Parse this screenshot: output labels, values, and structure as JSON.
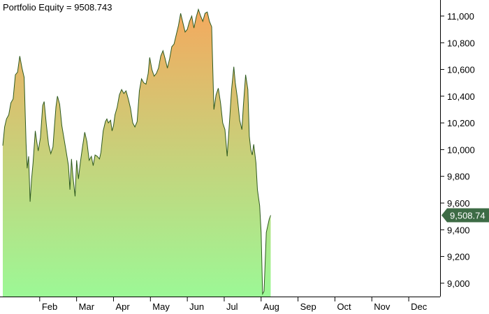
{
  "chart_data": {
    "type": "area",
    "title": "Portfolio Equity = 9508.743",
    "xlabel": "",
    "ylabel": "",
    "x_tick_labels": [
      "Feb",
      "Mar",
      "Apr",
      "May",
      "Jun",
      "Jul",
      "Aug",
      "Sep",
      "Oct",
      "Nov",
      "Dec"
    ],
    "x_tick_months": [
      2,
      3,
      4,
      5,
      6,
      7,
      8,
      9,
      10,
      11,
      12
    ],
    "x_range_months": [
      1.0,
      12.85
    ],
    "ylim": [
      8900,
      11120
    ],
    "y_ticks": [
      9000,
      9200,
      9400,
      9600,
      9800,
      10000,
      10200,
      10400,
      10600,
      10800,
      11000
    ],
    "y_tick_labels": [
      "9,000",
      "9,200",
      "9,400",
      "9,600",
      "9,800",
      "10,000",
      "10,200",
      "10,400",
      "10,600",
      "10,800",
      "11,000"
    ],
    "last_value": 9508.743,
    "last_value_label": "9,508.74",
    "grid": false,
    "legend": "none",
    "colors": {
      "fill_top": "#f4a95e",
      "fill_bottom": "#9cf896",
      "line": "#2e5a1f",
      "badge": "#3d6b45",
      "axis": "#000000"
    },
    "series": [
      {
        "points": [
          [
            1.0,
            10030
          ],
          [
            1.05,
            10170
          ],
          [
            1.1,
            10230
          ],
          [
            1.16,
            10260
          ],
          [
            1.22,
            10350
          ],
          [
            1.28,
            10380
          ],
          [
            1.34,
            10560
          ],
          [
            1.4,
            10580
          ],
          [
            1.46,
            10700
          ],
          [
            1.52,
            10610
          ],
          [
            1.58,
            10540
          ],
          [
            1.63,
            10050
          ],
          [
            1.66,
            9860
          ],
          [
            1.7,
            9950
          ],
          [
            1.74,
            9610
          ],
          [
            1.78,
            9780
          ],
          [
            1.82,
            9900
          ],
          [
            1.88,
            10140
          ],
          [
            1.92,
            10060
          ],
          [
            1.96,
            9990
          ],
          [
            2.02,
            10090
          ],
          [
            2.08,
            10330
          ],
          [
            2.12,
            10360
          ],
          [
            2.18,
            10190
          ],
          [
            2.24,
            10040
          ],
          [
            2.3,
            9970
          ],
          [
            2.36,
            10020
          ],
          [
            2.4,
            10180
          ],
          [
            2.44,
            10320
          ],
          [
            2.48,
            10400
          ],
          [
            2.54,
            10340
          ],
          [
            2.6,
            10180
          ],
          [
            2.66,
            10080
          ],
          [
            2.72,
            9980
          ],
          [
            2.78,
            9880
          ],
          [
            2.82,
            9700
          ],
          [
            2.86,
            9930
          ],
          [
            2.9,
            9800
          ],
          [
            2.96,
            9650
          ],
          [
            3.0,
            9920
          ],
          [
            3.05,
            9780
          ],
          [
            3.1,
            9900
          ],
          [
            3.16,
            10020
          ],
          [
            3.22,
            10130
          ],
          [
            3.28,
            10060
          ],
          [
            3.34,
            9920
          ],
          [
            3.4,
            9950
          ],
          [
            3.45,
            9880
          ],
          [
            3.5,
            9960
          ],
          [
            3.56,
            9950
          ],
          [
            3.62,
            9930
          ],
          [
            3.66,
            9980
          ],
          [
            3.72,
            10140
          ],
          [
            3.78,
            10210
          ],
          [
            3.82,
            10230
          ],
          [
            3.86,
            10200
          ],
          [
            3.92,
            10220
          ],
          [
            3.96,
            10140
          ],
          [
            4.0,
            10180
          ],
          [
            4.04,
            10260
          ],
          [
            4.1,
            10320
          ],
          [
            4.16,
            10410
          ],
          [
            4.22,
            10450
          ],
          [
            4.28,
            10420
          ],
          [
            4.34,
            10440
          ],
          [
            4.4,
            10380
          ],
          [
            4.46,
            10310
          ],
          [
            4.52,
            10200
          ],
          [
            4.58,
            10170
          ],
          [
            4.64,
            10210
          ],
          [
            4.7,
            10440
          ],
          [
            4.76,
            10530
          ],
          [
            4.82,
            10500
          ],
          [
            4.88,
            10490
          ],
          [
            4.94,
            10570
          ],
          [
            4.98,
            10690
          ],
          [
            5.04,
            10600
          ],
          [
            5.1,
            10550
          ],
          [
            5.16,
            10570
          ],
          [
            5.22,
            10610
          ],
          [
            5.28,
            10700
          ],
          [
            5.34,
            10740
          ],
          [
            5.4,
            10680
          ],
          [
            5.46,
            10610
          ],
          [
            5.52,
            10680
          ],
          [
            5.58,
            10770
          ],
          [
            5.64,
            10790
          ],
          [
            5.7,
            10860
          ],
          [
            5.76,
            10930
          ],
          [
            5.82,
            11020
          ],
          [
            5.88,
            10950
          ],
          [
            5.94,
            10880
          ],
          [
            6.0,
            10900
          ],
          [
            6.06,
            10960
          ],
          [
            6.12,
            11000
          ],
          [
            6.18,
            10910
          ],
          [
            6.24,
            10990
          ],
          [
            6.3,
            11050
          ],
          [
            6.36,
            11000
          ],
          [
            6.42,
            10960
          ],
          [
            6.48,
            11020
          ],
          [
            6.54,
            11030
          ],
          [
            6.6,
            10960
          ],
          [
            6.66,
            10920
          ],
          [
            6.72,
            10300
          ],
          [
            6.78,
            10410
          ],
          [
            6.84,
            10460
          ],
          [
            6.9,
            10350
          ],
          [
            6.96,
            10200
          ],
          [
            7.02,
            10150
          ],
          [
            7.08,
            9950
          ],
          [
            7.14,
            10200
          ],
          [
            7.2,
            10450
          ],
          [
            7.26,
            10620
          ],
          [
            7.3,
            10500
          ],
          [
            7.36,
            10380
          ],
          [
            7.42,
            10220
          ],
          [
            7.48,
            10150
          ],
          [
            7.52,
            10330
          ],
          [
            7.58,
            10560
          ],
          [
            7.64,
            10450
          ],
          [
            7.68,
            10100
          ],
          [
            7.72,
            10000
          ],
          [
            7.76,
            9960
          ],
          [
            7.8,
            10040
          ],
          [
            7.86,
            9900
          ],
          [
            7.9,
            9700
          ],
          [
            7.96,
            9580
          ],
          [
            8.0,
            9380
          ],
          [
            8.04,
            8920
          ],
          [
            8.08,
            8940
          ],
          [
            8.14,
            9380
          ],
          [
            8.18,
            9430
          ],
          [
            8.22,
            9480
          ],
          [
            8.26,
            9508.743
          ]
        ]
      }
    ]
  }
}
